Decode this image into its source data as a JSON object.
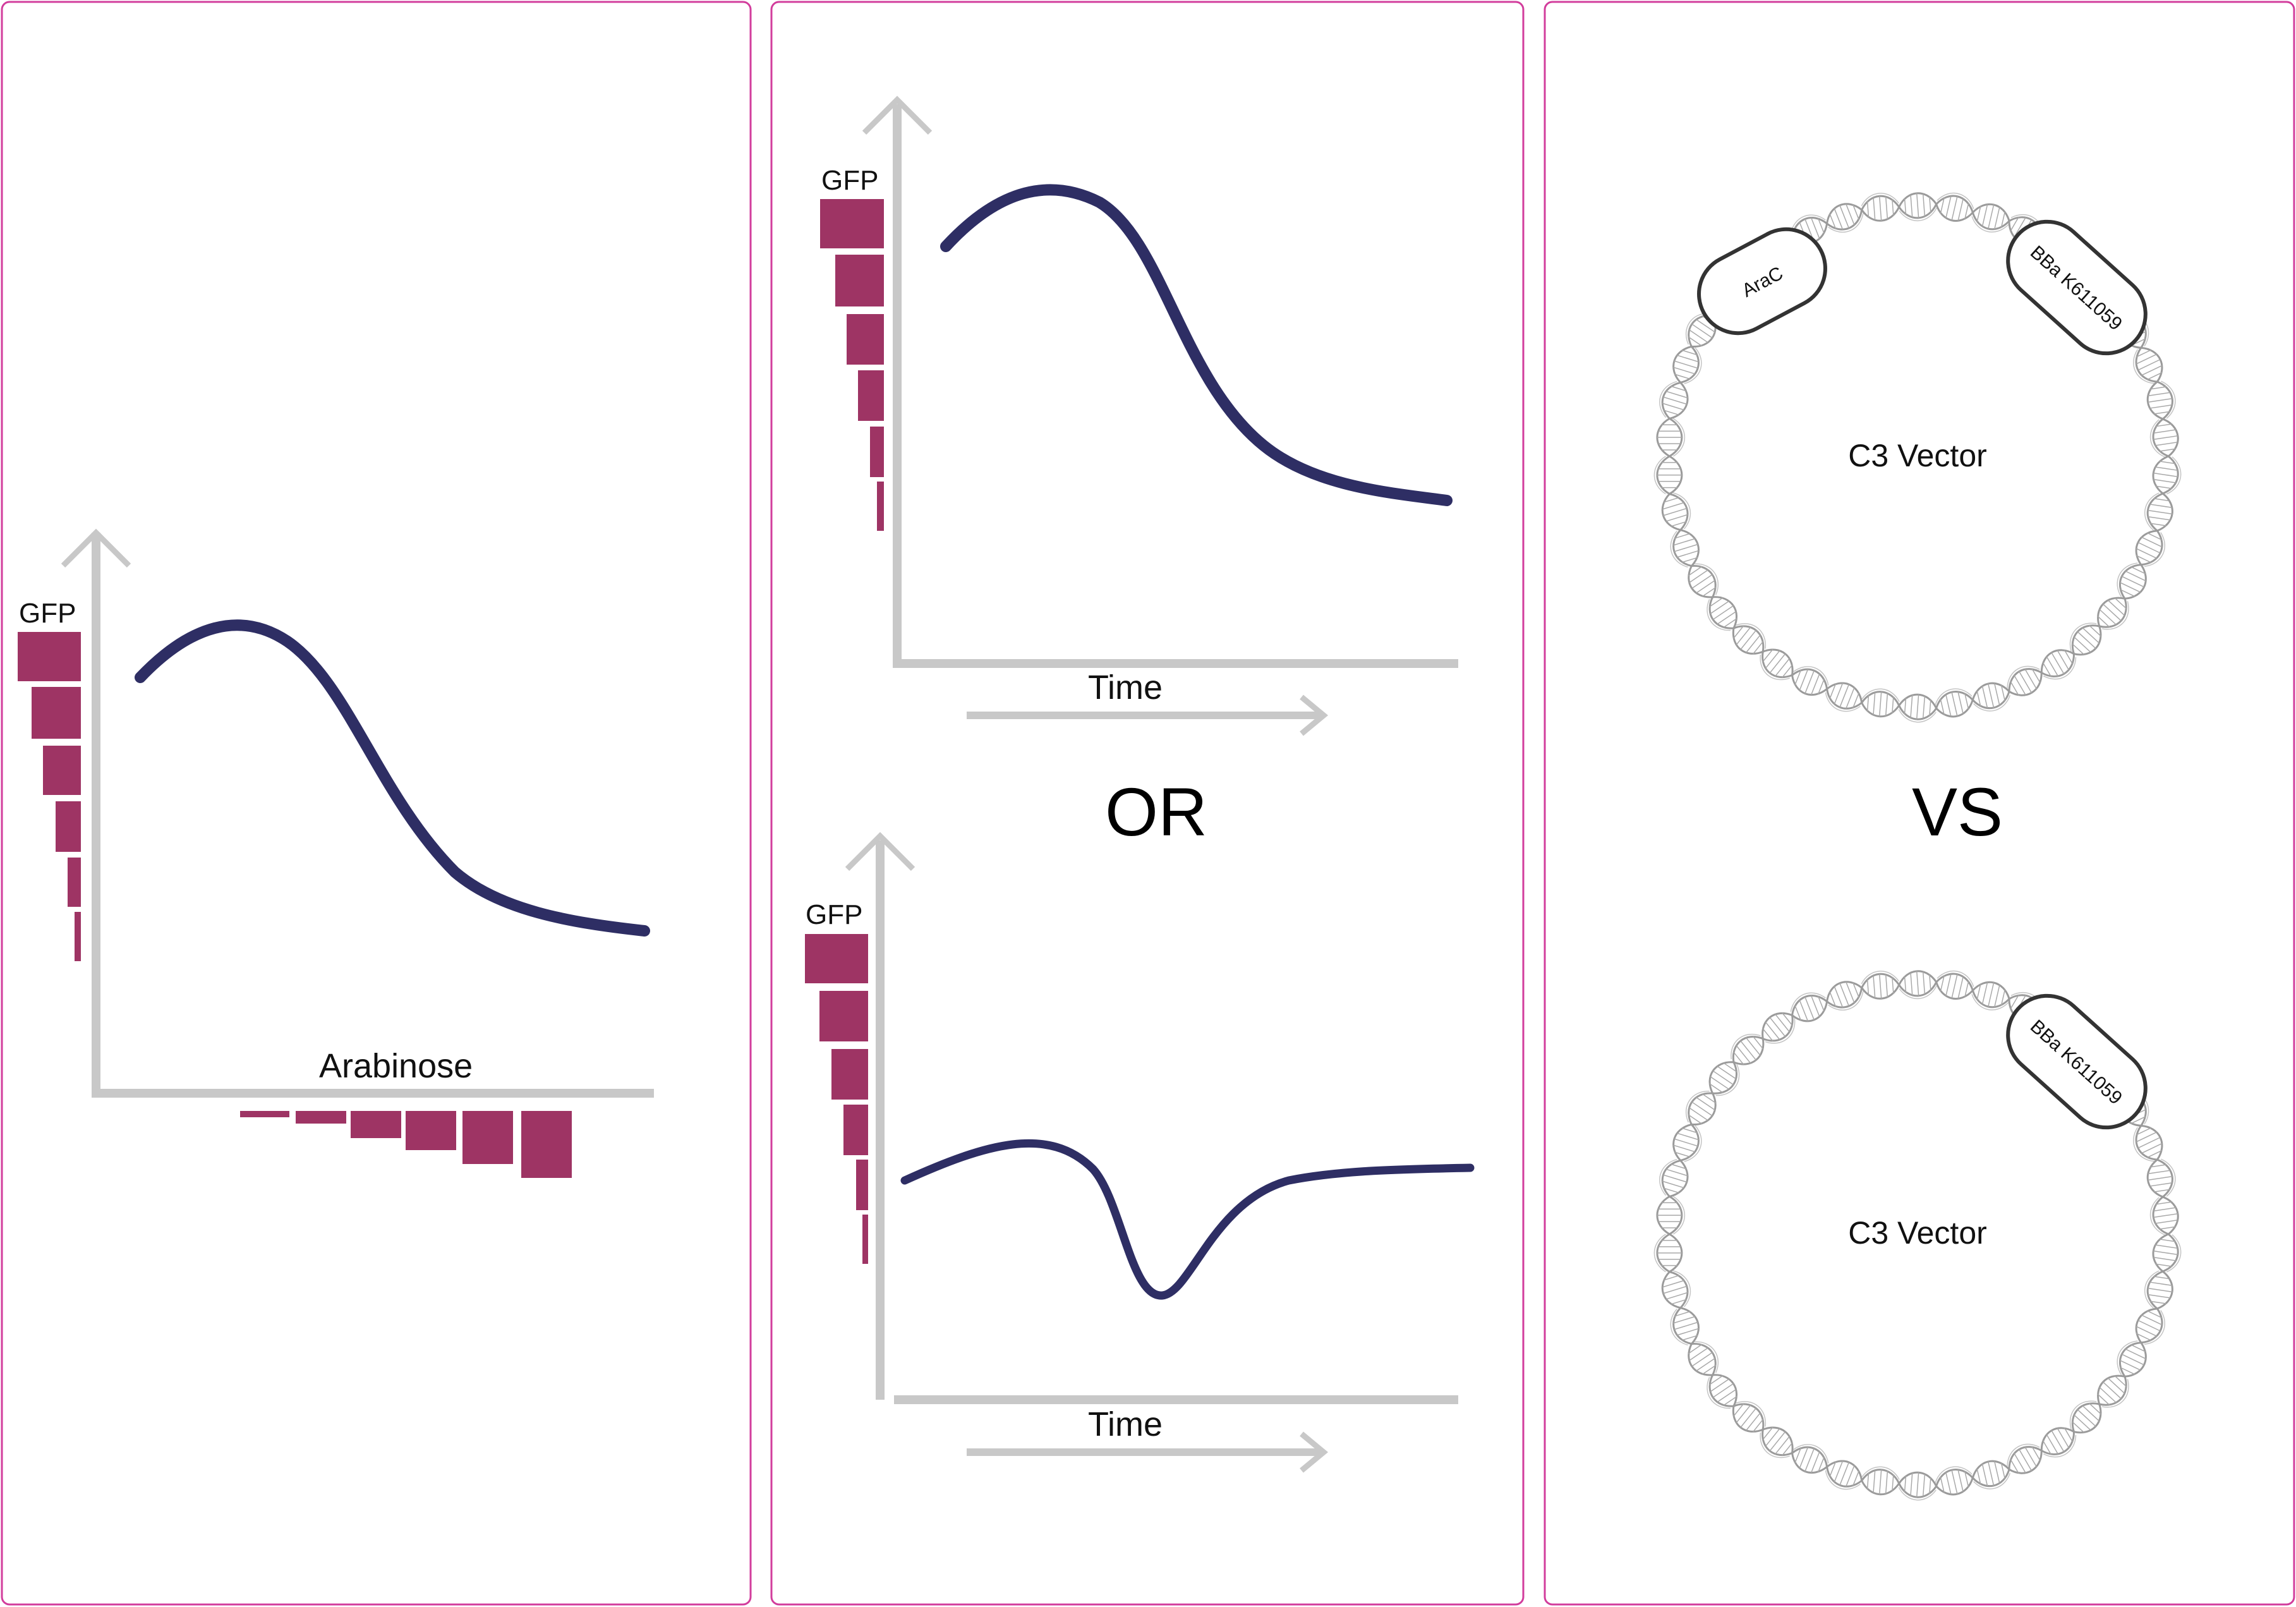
{
  "colors": {
    "panel_border": "#d23d9c",
    "axis": "#c8c8c8",
    "curve": "#2e2e64",
    "bar": "#9e3464",
    "outline": "#333333",
    "dna": "#9a9a9a"
  },
  "panels": [
    {
      "id": "arabinose",
      "ylabel": "GFP",
      "xlabel": "Arabinose"
    },
    {
      "id": "time",
      "top": {
        "ylabel": "GFP",
        "xlabel": "Time"
      },
      "separator": "OR",
      "bottom": {
        "ylabel": "GFP",
        "xlabel": "Time"
      }
    },
    {
      "id": "vectors",
      "top": {
        "name": "C3 Vector",
        "parts": [
          "AraC",
          "BBa K611059"
        ]
      },
      "separator": "VS",
      "bottom": {
        "name": "C3 Vector",
        "parts": [
          "BBa K611059"
        ]
      }
    }
  ],
  "icons": [
    "plasmid-dna-icon",
    "increasing-bars-icon",
    "axis-arrow-icon"
  ]
}
